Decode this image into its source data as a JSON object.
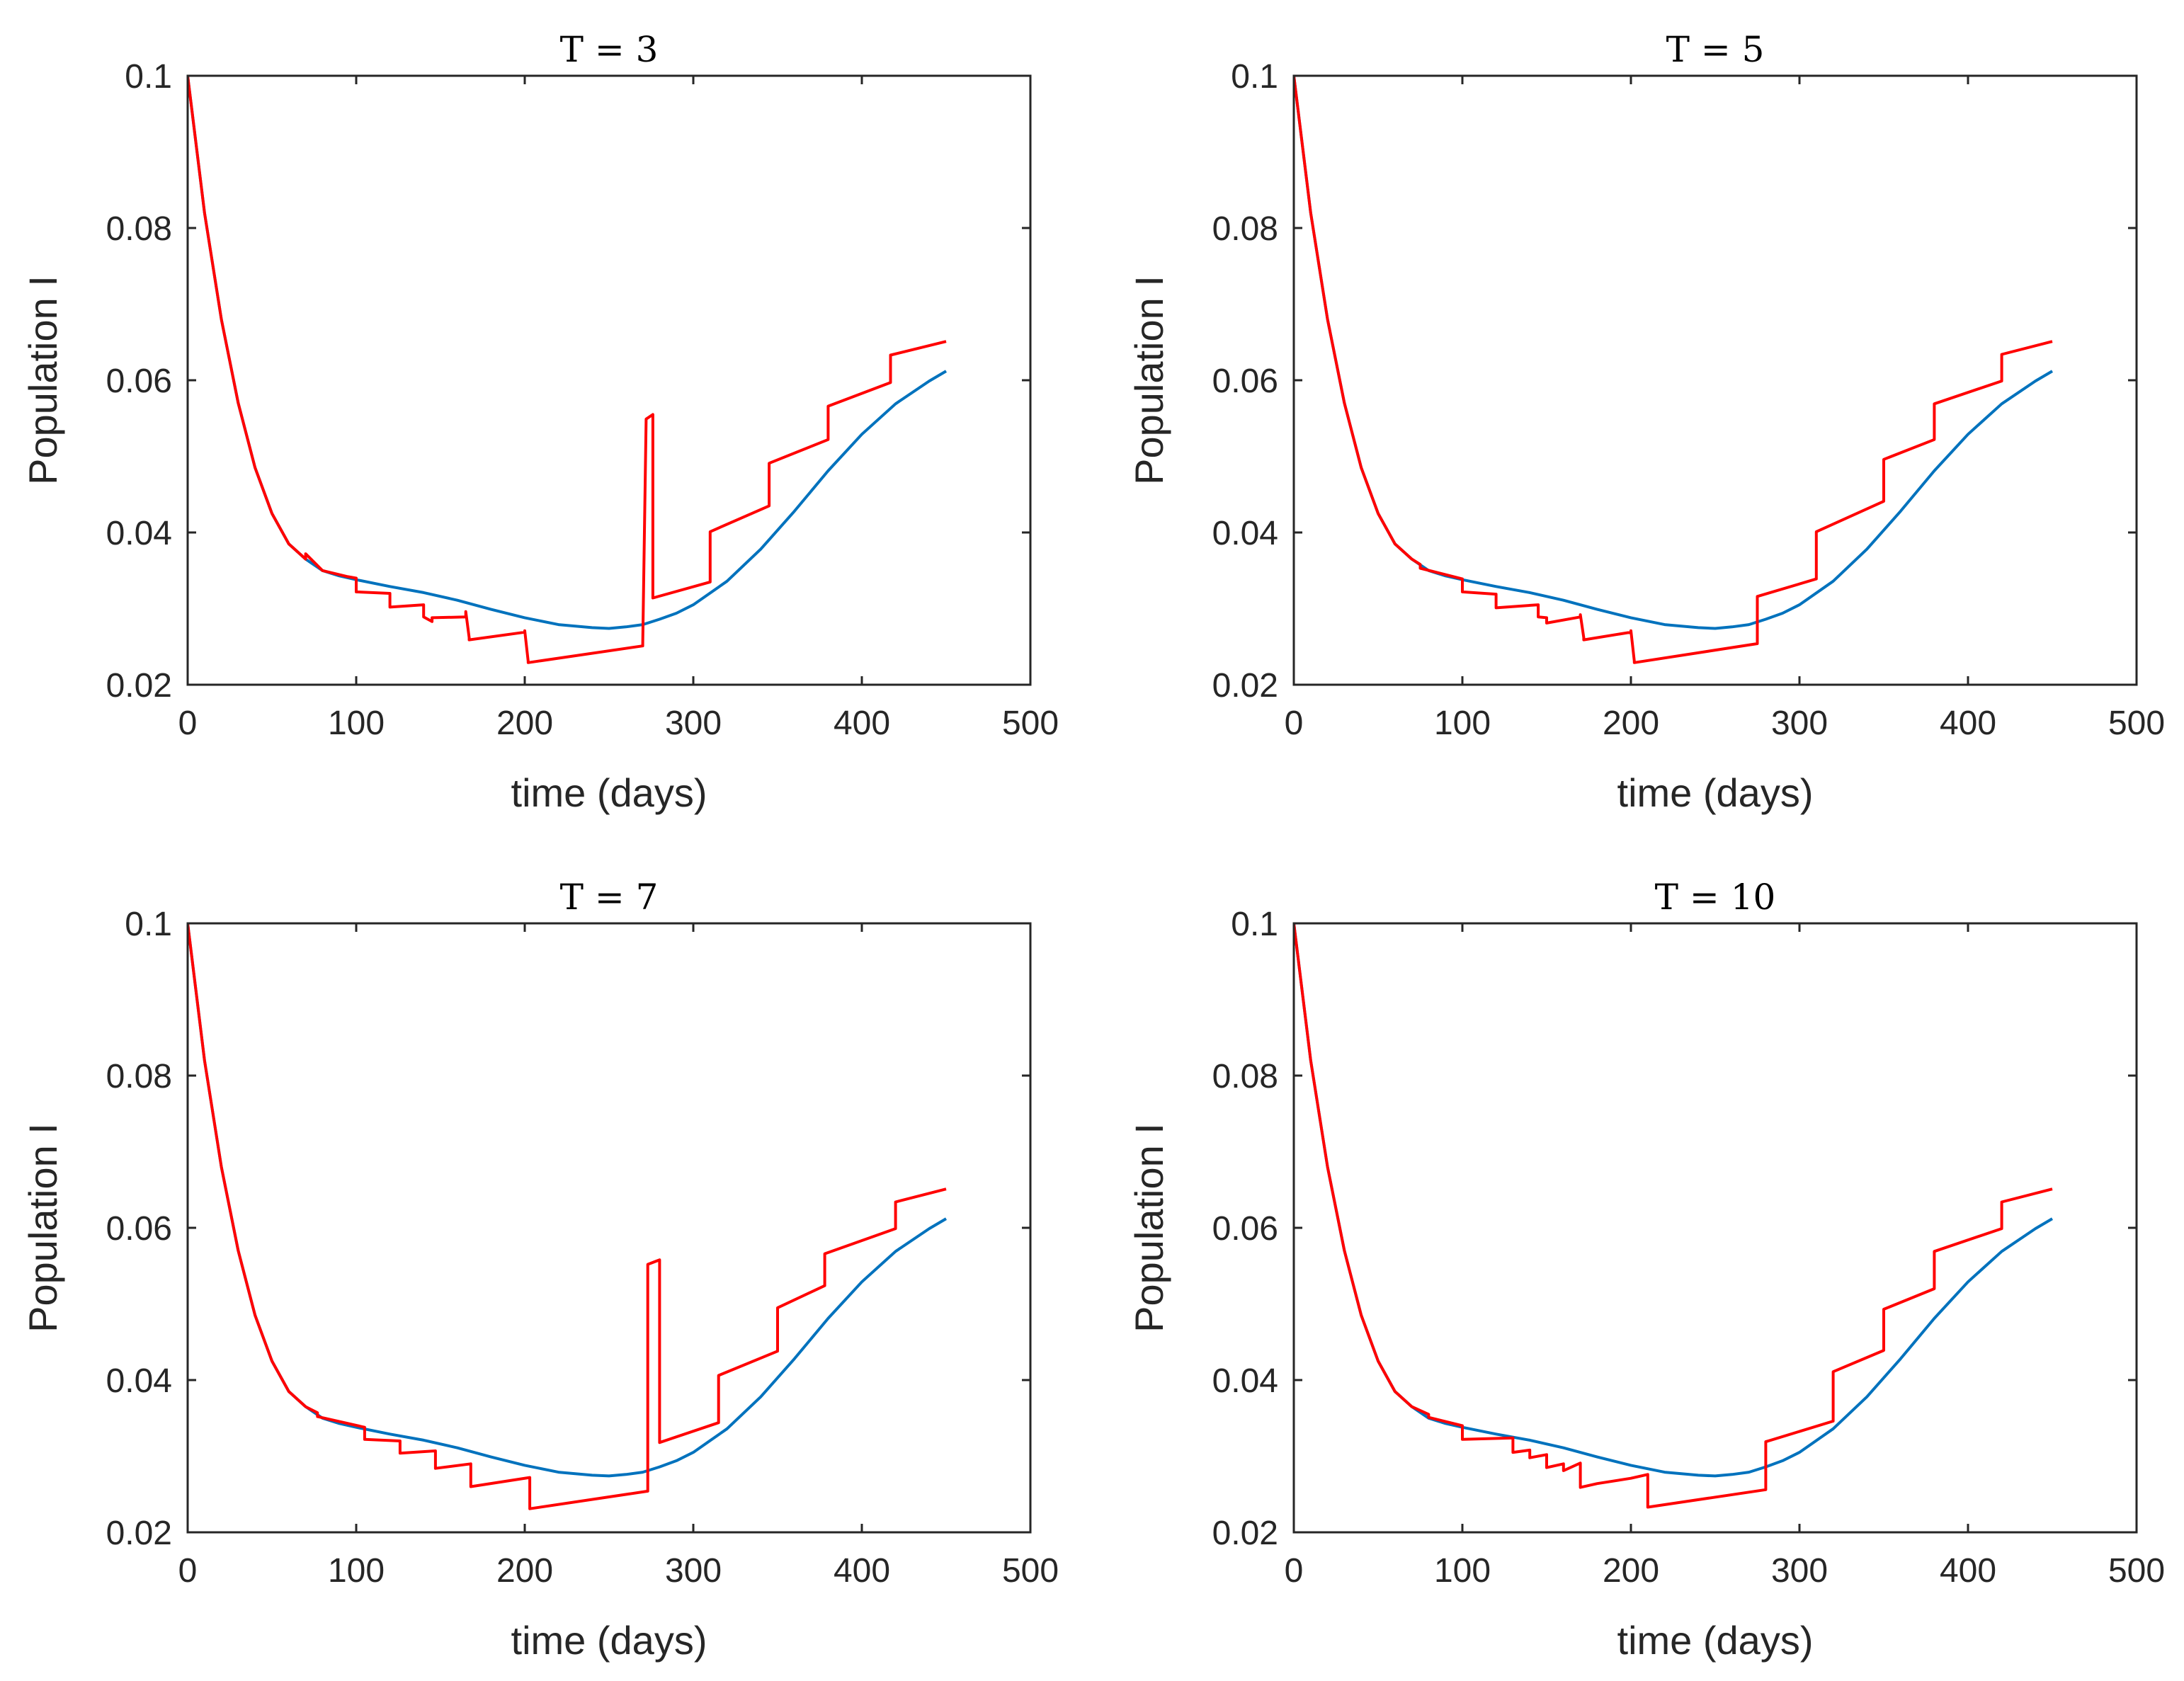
{
  "chart_data": [
    {
      "type": "line",
      "title": "T = 3",
      "xlabel": "time (days)",
      "ylabel": "Population I",
      "xlim": [
        0,
        500
      ],
      "ylim": [
        0.02,
        0.1
      ],
      "xticks": [
        "0",
        "100",
        "200",
        "300",
        "400",
        "500"
      ],
      "yticks": [
        "0.02",
        "0.04",
        "0.06",
        "0.08",
        "0.1"
      ],
      "series": [
        {
          "name": "blue",
          "color": "#0072BD",
          "x": [
            0,
            10,
            20,
            30,
            40,
            50,
            60,
            70,
            80,
            90,
            100,
            120,
            140,
            160,
            180,
            200,
            220,
            240,
            250,
            260,
            270,
            280,
            290,
            300,
            320,
            340,
            360,
            380,
            400,
            420,
            440,
            450
          ],
          "y": [
            0.1,
            0.082,
            0.068,
            0.057,
            0.0485,
            0.0425,
            0.0385,
            0.0365,
            0.035,
            0.0343,
            0.0338,
            0.0329,
            0.0321,
            0.0311,
            0.0299,
            0.0288,
            0.0279,
            0.0275,
            0.0274,
            0.0276,
            0.0279,
            0.0286,
            0.0294,
            0.0305,
            0.0336,
            0.0378,
            0.0428,
            0.0481,
            0.0529,
            0.0569,
            0.0599,
            0.0612
          ]
        },
        {
          "name": "red",
          "color": "#FF0000",
          "x": [
            0,
            10,
            20,
            30,
            40,
            50,
            60,
            70,
            70,
            80,
            95,
            100,
            100,
            120,
            120,
            140,
            140,
            145,
            145,
            165,
            165,
            167,
            167,
            200,
            200,
            202,
            202,
            270,
            270,
            272,
            272,
            276,
            276,
            310,
            310,
            345,
            345,
            380,
            380,
            417,
            417,
            450
          ],
          "y": [
            0.1,
            0.082,
            0.068,
            0.057,
            0.0485,
            0.0425,
            0.0385,
            0.0365,
            0.0372,
            0.035,
            0.0342,
            0.034,
            0.0322,
            0.032,
            0.0302,
            0.0305,
            0.0289,
            0.0283,
            0.0288,
            0.0289,
            0.0296,
            0.0262,
            0.0259,
            0.0269,
            0.0271,
            0.0231,
            0.0229,
            0.0251,
            0.0254,
            0.0549,
            0.0549,
            0.0555,
            0.0314,
            0.0335,
            0.0401,
            0.0435,
            0.0491,
            0.0522,
            0.0566,
            0.0597,
            0.0633,
            0.0651
          ]
        }
      ]
    },
    {
      "type": "line",
      "title": "T = 5",
      "xlabel": "time (days)",
      "ylabel": "Population I",
      "xlim": [
        0,
        500
      ],
      "ylim": [
        0.02,
        0.1
      ],
      "xticks": [
        "0",
        "100",
        "200",
        "300",
        "400",
        "500"
      ],
      "yticks": [
        "0.02",
        "0.04",
        "0.06",
        "0.08",
        "0.1"
      ],
      "series": [
        {
          "name": "blue",
          "color": "#0072BD",
          "x": [
            0,
            10,
            20,
            30,
            40,
            50,
            60,
            70,
            80,
            90,
            100,
            120,
            140,
            160,
            180,
            200,
            220,
            240,
            250,
            260,
            270,
            280,
            290,
            300,
            320,
            340,
            360,
            380,
            400,
            420,
            440,
            450
          ],
          "y": [
            0.1,
            0.082,
            0.068,
            0.057,
            0.0485,
            0.0425,
            0.0385,
            0.0365,
            0.035,
            0.0343,
            0.0338,
            0.0329,
            0.0321,
            0.0311,
            0.0299,
            0.0288,
            0.0279,
            0.0275,
            0.0274,
            0.0276,
            0.0279,
            0.0286,
            0.0294,
            0.0305,
            0.0336,
            0.0378,
            0.0428,
            0.0481,
            0.0529,
            0.0569,
            0.0599,
            0.0612
          ]
        },
        {
          "name": "red",
          "color": "#FF0000",
          "x": [
            0,
            10,
            20,
            30,
            40,
            50,
            60,
            70,
            75,
            75,
            100,
            100,
            120,
            120,
            145,
            145,
            150,
            150,
            170,
            170,
            172,
            172,
            200,
            200,
            202,
            202,
            275,
            275,
            310,
            310,
            350,
            350,
            380,
            380,
            420,
            420,
            450
          ],
          "y": [
            0.1,
            0.082,
            0.068,
            0.057,
            0.0485,
            0.0425,
            0.0385,
            0.0365,
            0.0358,
            0.0353,
            0.0339,
            0.0322,
            0.0319,
            0.0301,
            0.0305,
            0.0289,
            0.0288,
            0.0281,
            0.0289,
            0.0292,
            0.0262,
            0.0259,
            0.0269,
            0.0271,
            0.0231,
            0.0229,
            0.0254,
            0.0316,
            0.0339,
            0.0401,
            0.0441,
            0.0496,
            0.0522,
            0.0569,
            0.0599,
            0.0634,
            0.0651
          ]
        }
      ]
    },
    {
      "type": "line",
      "title": "T = 7",
      "xlabel": "time (days)",
      "ylabel": "Population I",
      "xlim": [
        0,
        500
      ],
      "ylim": [
        0.02,
        0.1
      ],
      "xticks": [
        "0",
        "100",
        "200",
        "300",
        "400",
        "500"
      ],
      "yticks": [
        "0.02",
        "0.04",
        "0.06",
        "0.08",
        "0.1"
      ],
      "series": [
        {
          "name": "blue",
          "color": "#0072BD",
          "x": [
            0,
            10,
            20,
            30,
            40,
            50,
            60,
            70,
            80,
            90,
            100,
            120,
            140,
            160,
            180,
            200,
            220,
            240,
            250,
            260,
            270,
            280,
            290,
            300,
            320,
            340,
            360,
            380,
            400,
            420,
            440,
            450
          ],
          "y": [
            0.1,
            0.082,
            0.068,
            0.057,
            0.0485,
            0.0425,
            0.0385,
            0.0365,
            0.035,
            0.0343,
            0.0338,
            0.0329,
            0.0321,
            0.0311,
            0.0299,
            0.0288,
            0.0279,
            0.0275,
            0.0274,
            0.0276,
            0.0279,
            0.0286,
            0.0294,
            0.0305,
            0.0336,
            0.0378,
            0.0428,
            0.0481,
            0.0529,
            0.0569,
            0.0599,
            0.0612
          ]
        },
        {
          "name": "red",
          "color": "#FF0000",
          "x": [
            0,
            10,
            20,
            30,
            40,
            50,
            60,
            70,
            77,
            77,
            105,
            105,
            126,
            126,
            147,
            147,
            168,
            168,
            203,
            203,
            273,
            273,
            280,
            280,
            315,
            315,
            350,
            350,
            378,
            378,
            420,
            420,
            450
          ],
          "y": [
            0.1,
            0.082,
            0.068,
            0.057,
            0.0485,
            0.0425,
            0.0385,
            0.0365,
            0.0357,
            0.0352,
            0.0338,
            0.0322,
            0.032,
            0.0304,
            0.0307,
            0.0284,
            0.029,
            0.026,
            0.0272,
            0.0231,
            0.0254,
            0.0552,
            0.0558,
            0.0318,
            0.0344,
            0.0406,
            0.0438,
            0.0495,
            0.0524,
            0.0566,
            0.0599,
            0.0634,
            0.0651
          ]
        }
      ]
    },
    {
      "type": "line",
      "title": "T = 10",
      "xlabel": "time (days)",
      "ylabel": "Population I",
      "xlim": [
        0,
        500
      ],
      "ylim": [
        0.02,
        0.1
      ],
      "xticks": [
        "0",
        "100",
        "200",
        "300",
        "400",
        "500"
      ],
      "yticks": [
        "0.02",
        "0.04",
        "0.06",
        "0.08",
        "0.1"
      ],
      "series": [
        {
          "name": "blue",
          "color": "#0072BD",
          "x": [
            0,
            10,
            20,
            30,
            40,
            50,
            60,
            70,
            80,
            90,
            100,
            120,
            140,
            160,
            180,
            200,
            220,
            240,
            250,
            260,
            270,
            280,
            290,
            300,
            320,
            340,
            360,
            380,
            400,
            420,
            440,
            450
          ],
          "y": [
            0.1,
            0.082,
            0.068,
            0.057,
            0.0485,
            0.0425,
            0.0385,
            0.0365,
            0.035,
            0.0343,
            0.0338,
            0.0329,
            0.0321,
            0.0311,
            0.0299,
            0.0288,
            0.0279,
            0.0275,
            0.0274,
            0.0276,
            0.0279,
            0.0286,
            0.0294,
            0.0305,
            0.0336,
            0.0378,
            0.0428,
            0.0481,
            0.0529,
            0.0569,
            0.0599,
            0.0612
          ]
        },
        {
          "name": "red",
          "color": "#FF0000",
          "x": [
            0,
            10,
            20,
            30,
            40,
            50,
            60,
            70,
            80,
            80,
            100,
            100,
            130,
            130,
            140,
            140,
            150,
            150,
            160,
            160,
            170,
            170,
            180,
            200,
            210,
            210,
            280,
            280,
            320,
            320,
            350,
            350,
            380,
            380,
            420,
            420,
            450
          ],
          "y": [
            0.1,
            0.082,
            0.068,
            0.057,
            0.0485,
            0.0425,
            0.0385,
            0.0365,
            0.0355,
            0.0351,
            0.034,
            0.0322,
            0.0324,
            0.0305,
            0.0308,
            0.0298,
            0.0302,
            0.0285,
            0.029,
            0.0281,
            0.0291,
            0.0259,
            0.0264,
            0.0271,
            0.0276,
            0.0233,
            0.0256,
            0.0319,
            0.0346,
            0.0411,
            0.0439,
            0.0493,
            0.052,
            0.0569,
            0.0599,
            0.0634,
            0.0651
          ]
        }
      ]
    }
  ]
}
